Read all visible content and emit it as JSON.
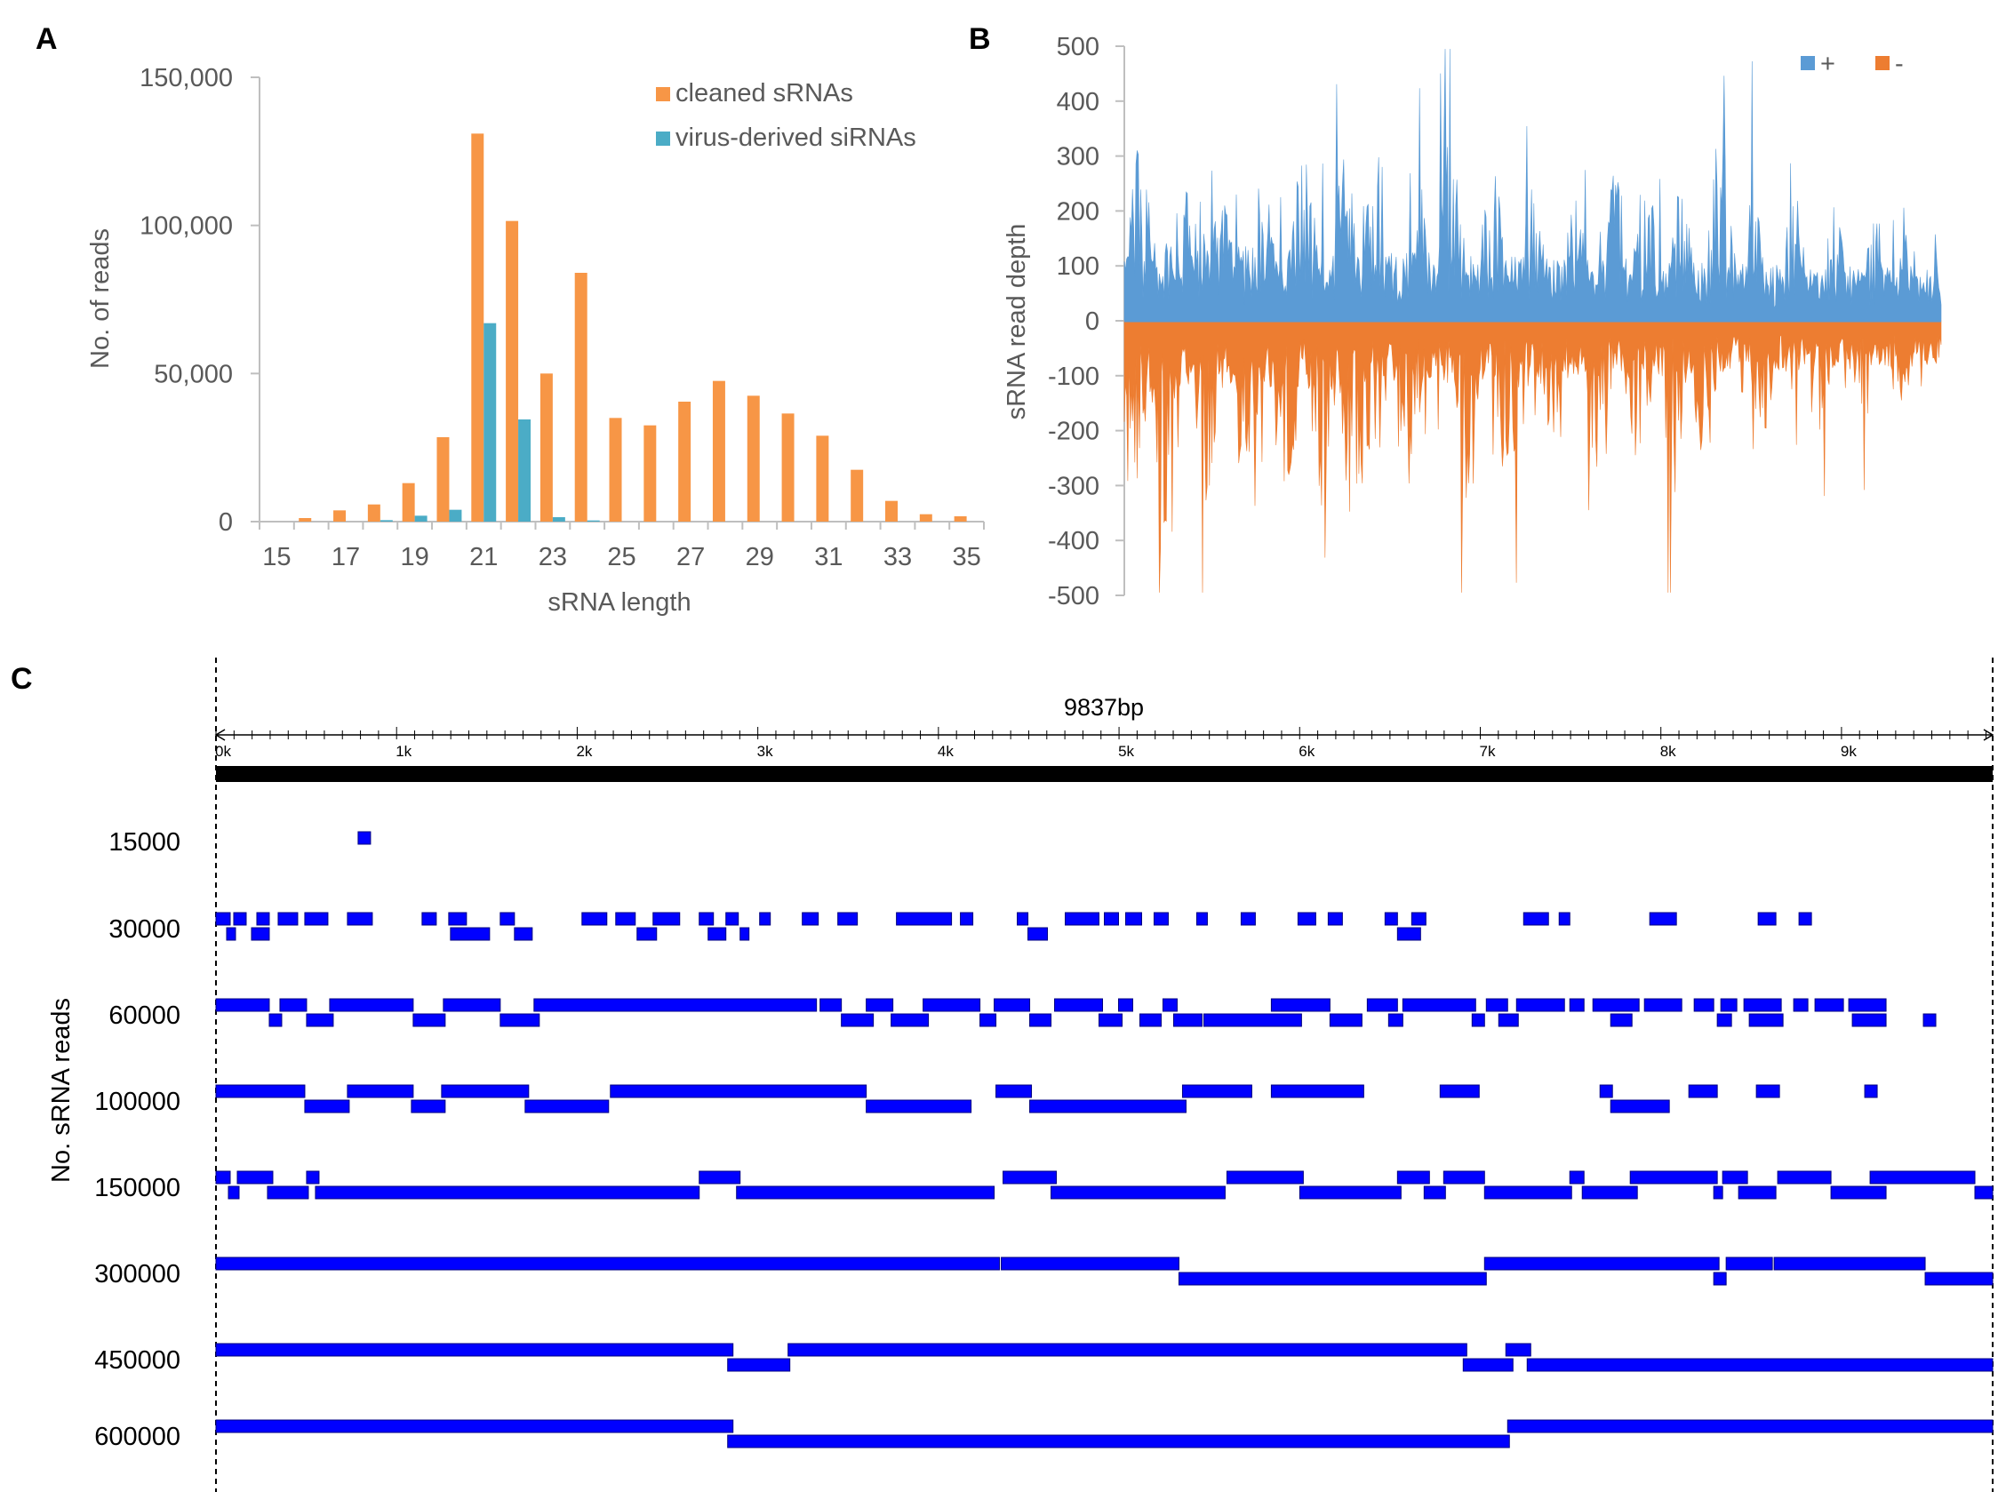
{
  "panels": {
    "a": "A",
    "b": "B",
    "c": "C"
  },
  "colors": {
    "cleaned": "#f79646",
    "virus": "#4bacc6",
    "plus": "#5b9bd5",
    "minus": "#ed7d31",
    "track": "#0000ff",
    "axis": "#bfbfbf",
    "text": "#595959"
  },
  "chart_data": [
    {
      "type": "bar",
      "title": "",
      "xlabel": "sRNA length",
      "ylabel": "No. of reads",
      "ylim": [
        0,
        150000
      ],
      "y_ticks": [
        0,
        50000,
        100000,
        150000
      ],
      "y_tick_labels": [
        "0",
        "50,000",
        "100,000",
        "150,000"
      ],
      "x_tick_labels": [
        "15",
        "17",
        "19",
        "21",
        "23",
        "25",
        "27",
        "29",
        "31",
        "33",
        "35"
      ],
      "categories": [
        "15",
        "16",
        "17",
        "18",
        "19",
        "20",
        "21",
        "22",
        "23",
        "24",
        "25",
        "26",
        "27",
        "28",
        "29",
        "30",
        "31",
        "32",
        "33",
        "34",
        "35"
      ],
      "legend_position": "top-right",
      "series": [
        {
          "name": "cleaned sRNAs",
          "values": [
            0,
            1200,
            3800,
            5800,
            13000,
            28500,
            131000,
            101500,
            50000,
            84000,
            35000,
            32500,
            40500,
            47500,
            42500,
            36500,
            29000,
            17500,
            7000,
            2500,
            1800
          ]
        },
        {
          "name": "virus-derived siRNAs",
          "values": [
            0,
            0,
            0,
            500,
            2000,
            4000,
            67000,
            34500,
            1500,
            400,
            0,
            0,
            0,
            0,
            0,
            0,
            0,
            0,
            0,
            0,
            0
          ]
        }
      ]
    },
    {
      "type": "area",
      "title": "",
      "xlabel": "",
      "ylabel": "sRNA read depth",
      "ylim": [
        -500,
        500
      ],
      "y_ticks": [
        -500,
        -400,
        -300,
        -200,
        -100,
        0,
        100,
        200,
        300,
        400,
        500
      ],
      "legend_position": "top-right",
      "series": [
        {
          "name": "+",
          "peaks": [
            [
              0.02,
              360
            ],
            [
              0.07,
              280
            ],
            [
              0.12,
              260
            ],
            [
              0.17,
              280
            ],
            [
              0.22,
              360
            ],
            [
              0.27,
              310
            ],
            [
              0.31,
              390
            ],
            [
              0.36,
              260
            ],
            [
              0.4,
              370
            ],
            [
              0.45,
              300
            ],
            [
              0.5,
              250
            ],
            [
              0.55,
              270
            ],
            [
              0.6,
              300
            ],
            [
              0.64,
              340
            ],
            [
              0.68,
              270
            ],
            [
              0.73,
              360
            ],
            [
              0.77,
              230
            ],
            [
              0.82,
              250
            ],
            [
              0.87,
              210
            ],
            [
              0.92,
              190
            ],
            [
              0.96,
              170
            ]
          ]
        },
        {
          "name": "-",
          "peaks": [
            [
              0.01,
              -330
            ],
            [
              0.05,
              -370
            ],
            [
              0.1,
              -330
            ],
            [
              0.15,
              -310
            ],
            [
              0.2,
              -340
            ],
            [
              0.24,
              -360
            ],
            [
              0.28,
              -380
            ],
            [
              0.3,
              -410
            ],
            [
              0.35,
              -320
            ],
            [
              0.42,
              -360
            ],
            [
              0.47,
              -320
            ],
            [
              0.52,
              -260
            ],
            [
              0.58,
              -300
            ],
            [
              0.63,
              -290
            ],
            [
              0.67,
              -340
            ],
            [
              0.71,
              -270
            ],
            [
              0.78,
              -240
            ],
            [
              0.85,
              -220
            ],
            [
              0.9,
              -190
            ],
            [
              0.95,
              -170
            ]
          ]
        }
      ]
    },
    {
      "type": "genome-track",
      "title": "9837bp",
      "ylabel": "No. sRNA reads",
      "genome_length": 9837,
      "x_tick_labels": [
        "0k",
        "1k",
        "2k",
        "3k",
        "4k",
        "5k",
        "6k",
        "7k",
        "8k",
        "9k"
      ],
      "rows": [
        {
          "label": "15000",
          "segments": [
            [
              0.08,
              0.087,
              0
            ]
          ]
        },
        {
          "label": "30000",
          "segments": [
            [
              0.0,
              0.008,
              0
            ],
            [
              0.01,
              0.017,
              0
            ],
            [
              0.023,
              0.03,
              0
            ],
            [
              0.035,
              0.046,
              0
            ],
            [
              0.05,
              0.063,
              0
            ],
            [
              0.074,
              0.088,
              0
            ],
            [
              0.116,
              0.124,
              0
            ],
            [
              0.131,
              0.141,
              0
            ],
            [
              0.16,
              0.168,
              0
            ],
            [
              0.206,
              0.22,
              0
            ],
            [
              0.225,
              0.236,
              0
            ],
            [
              0.246,
              0.261,
              0
            ],
            [
              0.272,
              0.28,
              0
            ],
            [
              0.287,
              0.294,
              0
            ],
            [
              0.306,
              0.312,
              0
            ],
            [
              0.33,
              0.339,
              0
            ],
            [
              0.35,
              0.361,
              0
            ],
            [
              0.383,
              0.414,
              0
            ],
            [
              0.419,
              0.426,
              0
            ],
            [
              0.451,
              0.457,
              0
            ],
            [
              0.478,
              0.497,
              0
            ],
            [
              0.5,
              0.508,
              0
            ],
            [
              0.512,
              0.521,
              0
            ],
            [
              0.528,
              0.536,
              0
            ],
            [
              0.552,
              0.558,
              0
            ],
            [
              0.577,
              0.585,
              0
            ],
            [
              0.609,
              0.619,
              0
            ],
            [
              0.626,
              0.634,
              0
            ],
            [
              0.658,
              0.665,
              0
            ],
            [
              0.673,
              0.681,
              0
            ],
            [
              0.736,
              0.75,
              0
            ],
            [
              0.756,
              0.762,
              0
            ],
            [
              0.807,
              0.822,
              0
            ],
            [
              0.868,
              0.878,
              0
            ],
            [
              0.891,
              0.898,
              0
            ],
            [
              0.006,
              0.011,
              1
            ],
            [
              0.02,
              0.03,
              1
            ],
            [
              0.132,
              0.154,
              1
            ],
            [
              0.168,
              0.178,
              1
            ],
            [
              0.237,
              0.248,
              1
            ],
            [
              0.277,
              0.287,
              1
            ],
            [
              0.295,
              0.3,
              1
            ],
            [
              0.457,
              0.468,
              1
            ],
            [
              0.665,
              0.678,
              1
            ]
          ]
        },
        {
          "label": "60000",
          "segments": [
            [
              0.0,
              0.03,
              0
            ],
            [
              0.036,
              0.051,
              0
            ],
            [
              0.064,
              0.111,
              0
            ],
            [
              0.128,
              0.16,
              0
            ],
            [
              0.179,
              0.338,
              0
            ],
            [
              0.34,
              0.352,
              0
            ],
            [
              0.366,
              0.381,
              0
            ],
            [
              0.398,
              0.43,
              0
            ],
            [
              0.438,
              0.458,
              0
            ],
            [
              0.472,
              0.499,
              0
            ],
            [
              0.508,
              0.516,
              0
            ],
            [
              0.533,
              0.541,
              0
            ],
            [
              0.594,
              0.627,
              0
            ],
            [
              0.648,
              0.665,
              0
            ],
            [
              0.668,
              0.709,
              0
            ],
            [
              0.715,
              0.727,
              0
            ],
            [
              0.732,
              0.759,
              0
            ],
            [
              0.762,
              0.77,
              0
            ],
            [
              0.775,
              0.801,
              0
            ],
            [
              0.804,
              0.825,
              0
            ],
            [
              0.832,
              0.843,
              0
            ],
            [
              0.847,
              0.856,
              0
            ],
            [
              0.86,
              0.881,
              0
            ],
            [
              0.888,
              0.896,
              0
            ],
            [
              0.9,
              0.916,
              0
            ],
            [
              0.919,
              0.94,
              0
            ],
            [
              0.03,
              0.037,
              1
            ],
            [
              0.051,
              0.066,
              1
            ],
            [
              0.111,
              0.129,
              1
            ],
            [
              0.16,
              0.182,
              1
            ],
            [
              0.352,
              0.37,
              1
            ],
            [
              0.38,
              0.401,
              1
            ],
            [
              0.43,
              0.439,
              1
            ],
            [
              0.458,
              0.47,
              1
            ],
            [
              0.497,
              0.51,
              1
            ],
            [
              0.52,
              0.532,
              1
            ],
            [
              0.539,
              0.555,
              1
            ],
            [
              0.556,
              0.611,
              1
            ],
            [
              0.627,
              0.645,
              1
            ],
            [
              0.66,
              0.668,
              1
            ],
            [
              0.707,
              0.714,
              1
            ],
            [
              0.722,
              0.733,
              1
            ],
            [
              0.785,
              0.797,
              1
            ],
            [
              0.845,
              0.853,
              1
            ],
            [
              0.863,
              0.882,
              1
            ],
            [
              0.921,
              0.94,
              1
            ],
            [
              0.961,
              0.968,
              1
            ]
          ]
        },
        {
          "label": "100000",
          "segments": [
            [
              0.0,
              0.05,
              0
            ],
            [
              0.074,
              0.111,
              0
            ],
            [
              0.127,
              0.176,
              0
            ],
            [
              0.222,
              0.366,
              0
            ],
            [
              0.439,
              0.459,
              0
            ],
            [
              0.544,
              0.583,
              0
            ],
            [
              0.594,
              0.646,
              0
            ],
            [
              0.689,
              0.711,
              0
            ],
            [
              0.779,
              0.786,
              0
            ],
            [
              0.829,
              0.845,
              0
            ],
            [
              0.867,
              0.88,
              0
            ],
            [
              0.928,
              0.935,
              0
            ],
            [
              0.05,
              0.075,
              1
            ],
            [
              0.11,
              0.129,
              1
            ],
            [
              0.174,
              0.221,
              1
            ],
            [
              0.366,
              0.425,
              1
            ],
            [
              0.458,
              0.546,
              1
            ],
            [
              0.785,
              0.818,
              1
            ]
          ]
        },
        {
          "label": "150000",
          "segments": [
            [
              0.0,
              0.008,
              0
            ],
            [
              0.012,
              0.032,
              0
            ],
            [
              0.051,
              0.058,
              0
            ],
            [
              0.272,
              0.295,
              0
            ],
            [
              0.443,
              0.473,
              0
            ],
            [
              0.569,
              0.612,
              0
            ],
            [
              0.665,
              0.683,
              0
            ],
            [
              0.691,
              0.714,
              0
            ],
            [
              0.762,
              0.77,
              0
            ],
            [
              0.796,
              0.845,
              0
            ],
            [
              0.848,
              0.862,
              0
            ],
            [
              0.879,
              0.909,
              0
            ],
            [
              0.931,
              0.99,
              0
            ],
            [
              0.007,
              0.013,
              1
            ],
            [
              0.029,
              0.052,
              1
            ],
            [
              0.056,
              0.272,
              1
            ],
            [
              0.293,
              0.438,
              1
            ],
            [
              0.47,
              0.568,
              1
            ],
            [
              0.61,
              0.667,
              1
            ],
            [
              0.68,
              0.692,
              1
            ],
            [
              0.714,
              0.763,
              1
            ],
            [
              0.769,
              0.8,
              1
            ],
            [
              0.843,
              0.848,
              1
            ],
            [
              0.857,
              0.878,
              1
            ],
            [
              0.909,
              0.94,
              1
            ],
            [
              0.99,
              1.0,
              1
            ]
          ]
        },
        {
          "label": "300000",
          "segments": [
            [
              0.0,
              0.441,
              0
            ],
            [
              0.442,
              0.542,
              0
            ],
            [
              0.714,
              0.846,
              0
            ],
            [
              0.85,
              0.876,
              0
            ],
            [
              0.877,
              0.962,
              0
            ],
            [
              0.542,
              0.715,
              1
            ],
            [
              0.843,
              0.85,
              1
            ],
            [
              0.962,
              1.0,
              1
            ]
          ]
        },
        {
          "label": "450000",
          "segments": [
            [
              0.0,
              0.291,
              0
            ],
            [
              0.322,
              0.704,
              0
            ],
            [
              0.726,
              0.74,
              0
            ],
            [
              0.288,
              0.323,
              1
            ],
            [
              0.702,
              0.73,
              1
            ],
            [
              0.738,
              1.0,
              1
            ]
          ]
        },
        {
          "label": "600000",
          "segments": [
            [
              0.0,
              0.291,
              0
            ],
            [
              0.727,
              1.0,
              0
            ],
            [
              0.288,
              0.728,
              1
            ]
          ]
        }
      ]
    }
  ]
}
